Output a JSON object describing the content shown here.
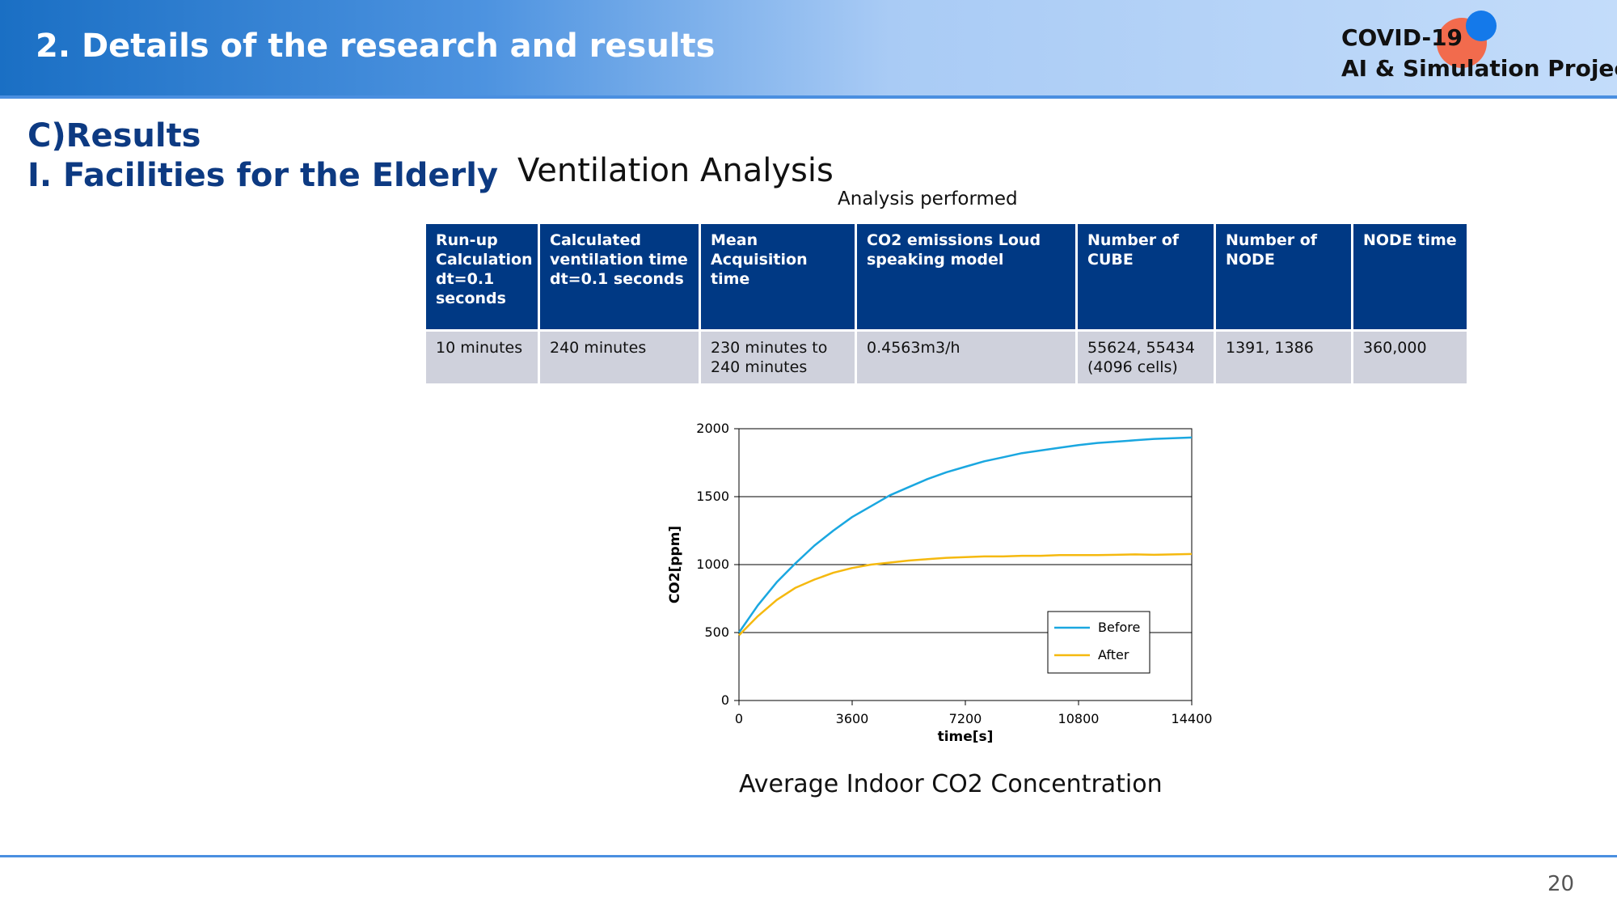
{
  "header": {
    "title": "2. Details of the research and results"
  },
  "logo": {
    "line1": "COVID-19",
    "line2": "AI & Simulation Project"
  },
  "section": {
    "line1": "C)Results",
    "line2": "I. Facilities for the Elderly"
  },
  "ventilation": {
    "title": "Ventilation Analysis",
    "table_caption": "Analysis performed"
  },
  "table": {
    "headers": [
      "Run-up Calculation dt=0.1 seconds",
      "Calculated ventilation time dt=0.1 seconds",
      "Mean Acquisition time",
      "CO2 emissions Loud speaking model",
      "Number of CUBE",
      "Number of NODE",
      "NODE time"
    ],
    "row": [
      "10 minutes",
      "240 minutes",
      "230 minutes to 240 minutes",
      "0.4563m3/h",
      "55624, 55434 (4096 cells)",
      "1391, 1386",
      "360,000"
    ]
  },
  "chart_data": {
    "type": "line",
    "caption": "Average Indoor CO2 Concentration",
    "xlabel": "time[s]",
    "ylabel": "CO2[ppm]",
    "xlim": [
      0,
      14400
    ],
    "ylim": [
      0,
      2000
    ],
    "xticks": [
      0,
      3600,
      7200,
      10800,
      14400
    ],
    "yticks": [
      0,
      500,
      1000,
      1500,
      2000
    ],
    "grid": "horizontal",
    "legend_position": "lower-right",
    "series": [
      {
        "name": "Before",
        "color": "#1aa7e0",
        "x": [
          0,
          600,
          1200,
          1800,
          2400,
          3000,
          3600,
          4200,
          4800,
          5400,
          6000,
          6600,
          7200,
          7800,
          8400,
          9000,
          9600,
          10200,
          10800,
          11400,
          12000,
          12600,
          13200,
          13800,
          14400
        ],
        "y": [
          500,
          700,
          870,
          1010,
          1140,
          1250,
          1350,
          1430,
          1510,
          1570,
          1630,
          1680,
          1720,
          1760,
          1790,
          1820,
          1840,
          1860,
          1880,
          1895,
          1905,
          1915,
          1925,
          1930,
          1935
        ]
      },
      {
        "name": "After",
        "color": "#f5b90f",
        "x": [
          0,
          600,
          1200,
          1800,
          2400,
          3000,
          3600,
          4200,
          4800,
          5400,
          6000,
          6600,
          7200,
          7800,
          8400,
          9000,
          9600,
          10200,
          10800,
          11400,
          12000,
          12600,
          13200,
          13800,
          14400
        ],
        "y": [
          480,
          620,
          740,
          830,
          890,
          940,
          975,
          1000,
          1015,
          1030,
          1040,
          1050,
          1055,
          1060,
          1060,
          1065,
          1065,
          1070,
          1070,
          1070,
          1072,
          1075,
          1072,
          1075,
          1078
        ]
      }
    ]
  },
  "page_number": "20"
}
